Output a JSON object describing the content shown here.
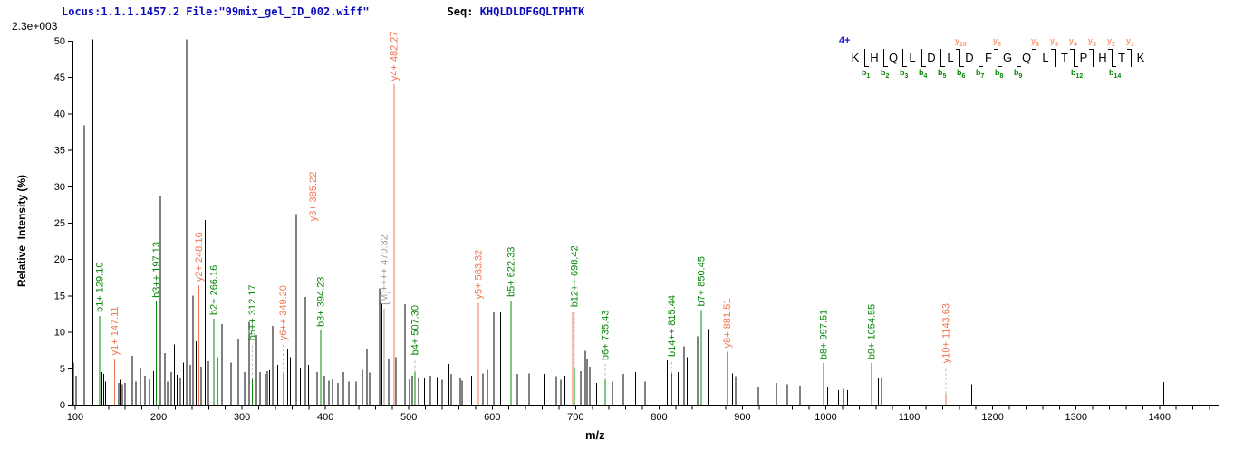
{
  "header": {
    "locus_file": "Locus:1.1.1.1457.2 File:\"99mix_gel_ID_002.wiff\"",
    "seq_label": "Seq:",
    "sequence": "KHQLDLDFGQLTPHTK",
    "max_intensity": "2.3e+003",
    "charge": "4+"
  },
  "colors": {
    "b_ion": "#068806",
    "y_ion": "#ef7450",
    "y_ion_map_label": "#f59a72",
    "precursor": "#9b9b9b",
    "leader_dash": "#bbbbbb",
    "header_blue": "#0b0bbe",
    "charge_blue": "#1616e0",
    "peak_black": "#000000"
  },
  "fragment_map": {
    "residues": [
      "K",
      "H",
      "Q",
      "L",
      "D",
      "L",
      "D",
      "F",
      "G",
      "Q",
      "L",
      "T",
      "P",
      "H",
      "T",
      "K"
    ],
    "y_ions": [
      {
        "after": 6,
        "ion": "y10"
      },
      {
        "after": 8,
        "ion": "y8"
      },
      {
        "after": 10,
        "ion": "y6"
      },
      {
        "after": 11,
        "ion": "y5"
      },
      {
        "after": 12,
        "ion": "y4"
      },
      {
        "after": 13,
        "ion": "y3"
      },
      {
        "after": 14,
        "ion": "y2"
      },
      {
        "after": 15,
        "ion": "y1"
      }
    ],
    "b_ions": [
      {
        "after": 1,
        "ion": "b1"
      },
      {
        "after": 2,
        "ion": "b2"
      },
      {
        "after": 3,
        "ion": "b3"
      },
      {
        "after": 4,
        "ion": "b4"
      },
      {
        "after": 5,
        "ion": "b5"
      },
      {
        "after": 6,
        "ion": "b6"
      },
      {
        "after": 7,
        "ion": "b7"
      },
      {
        "after": 8,
        "ion": "b8"
      },
      {
        "after": 9,
        "ion": "b9"
      },
      {
        "after": 12,
        "ion": "b12"
      },
      {
        "after": 14,
        "ion": "b14"
      }
    ]
  },
  "chart_data": {
    "type": "bar",
    "subtype": "ms2-peak-spectrum",
    "xlabel": "m/z",
    "ylabel": "Relative  Intensity (%)",
    "xlim": [
      96,
      1471
    ],
    "ylim": [
      0,
      50
    ],
    "x_tick_label_step": 100,
    "x_minor_tick_step": 20,
    "x_tick_labels": [
      100,
      200,
      300,
      400,
      500,
      600,
      700,
      800,
      900,
      1000,
      1100,
      1200,
      1300,
      1400
    ],
    "y_tick_step": 5,
    "y_tick_labels": [
      0,
      5,
      10,
      15,
      20,
      25,
      30,
      35,
      40,
      45,
      50
    ],
    "max_intensity_absolute": "2.3e+003",
    "annotated_peaks": [
      {
        "label": "b1+ 129.10",
        "mz": 129.1,
        "intensity": 12.2,
        "type": "b"
      },
      {
        "label": "y1+ 147.11",
        "mz": 147.11,
        "intensity": 6.3,
        "type": "y"
      },
      {
        "label": "b3++ 197.13",
        "mz": 197.13,
        "intensity": 14.2,
        "type": "b"
      },
      {
        "label": "y2+ 248.16",
        "mz": 248.16,
        "intensity": 16.4,
        "type": "y"
      },
      {
        "label": "b2+ 266.16",
        "mz": 266.16,
        "intensity": 11.8,
        "type": "b"
      },
      {
        "label": "b5++ 312.17",
        "mz": 312.17,
        "intensity": 3.5,
        "label_intensity": 8.3,
        "type": "b"
      },
      {
        "label": "y6++ 349.20",
        "mz": 349.2,
        "intensity": 4.2,
        "label_intensity": 8.3,
        "type": "y"
      },
      {
        "label": "y3+ 385.22",
        "mz": 385.22,
        "intensity": 24.7,
        "type": "y"
      },
      {
        "label": "b3+ 394.23",
        "mz": 394.23,
        "intensity": 10.2,
        "type": "b"
      },
      {
        "label": "[M]++++ 470.32",
        "mz": 470.32,
        "intensity": 13.2,
        "type": "M"
      },
      {
        "label": "y4+ 482.27",
        "mz": 482.27,
        "intensity": 44.0,
        "type": "y"
      },
      {
        "label": "b4+ 507.30",
        "mz": 507.3,
        "intensity": 4.5,
        "label_intensity": 6.3,
        "type": "b"
      },
      {
        "label": "y5+ 583.32",
        "mz": 583.32,
        "intensity": 14.0,
        "type": "y"
      },
      {
        "label": "b5+ 622.33",
        "mz": 622.33,
        "intensity": 14.3,
        "type": "b"
      },
      {
        "label": "",
        "mz": 696.4,
        "intensity": 12.7,
        "type": "y"
      },
      {
        "label": "b12++ 698.42",
        "mz": 698.42,
        "intensity": 4.9,
        "label_intensity": 12.9,
        "type": "b"
      },
      {
        "label": "b6+ 735.43",
        "mz": 735.43,
        "intensity": 3.4,
        "label_intensity": 5.6,
        "type": "b"
      },
      {
        "label": "b14++ 815.44",
        "mz": 815.44,
        "intensity": 4.3,
        "label_intensity": 6.1,
        "type": "b"
      },
      {
        "label": "b7+ 850.45",
        "mz": 850.45,
        "intensity": 13.0,
        "type": "b"
      },
      {
        "label": "y8+ 881.51",
        "mz": 881.51,
        "intensity": 7.3,
        "type": "y"
      },
      {
        "label": "b8+ 997.51",
        "mz": 997.51,
        "intensity": 5.7,
        "type": "b"
      },
      {
        "label": "b9+ 1054.55",
        "mz": 1054.55,
        "intensity": 5.7,
        "type": "b"
      },
      {
        "label": "y10+ 1143.63",
        "mz": 1143.63,
        "intensity": 1.5,
        "label_intensity": 5.2,
        "type": "y"
      }
    ],
    "peaks": [
      [
        98,
        5.8
      ],
      [
        101,
        4.0
      ],
      [
        110.9,
        38.4
      ],
      [
        121,
        50.2
      ],
      [
        132,
        4.5
      ],
      [
        134,
        4.2
      ],
      [
        136.5,
        3.2
      ],
      [
        152,
        3.0
      ],
      [
        154,
        3.4
      ],
      [
        156.5,
        2.8
      ],
      [
        160,
        3.0
      ],
      [
        168.4,
        6.7
      ],
      [
        173,
        3.2
      ],
      [
        178,
        5.0
      ],
      [
        183.6,
        4.0
      ],
      [
        189,
        3.5
      ],
      [
        194,
        4.6
      ],
      [
        202,
        28.7
      ],
      [
        207.5,
        7.1
      ],
      [
        211,
        3.2
      ],
      [
        215,
        4.5
      ],
      [
        218.7,
        8.3
      ],
      [
        222,
        4.1
      ],
      [
        226,
        3.6
      ],
      [
        230,
        5.8
      ],
      [
        233.8,
        50.2
      ],
      [
        238,
        5.5
      ],
      [
        241,
        15.0
      ],
      [
        245,
        8.7
      ],
      [
        251,
        5.2
      ],
      [
        256,
        25.4
      ],
      [
        259.5,
        6.0
      ],
      [
        270.5,
        6.5
      ],
      [
        276,
        11.1
      ],
      [
        286.8,
        5.8
      ],
      [
        295.5,
        9.0
      ],
      [
        303,
        4.5
      ],
      [
        308.6,
        11.4
      ],
      [
        317.3,
        9.6
      ],
      [
        321.6,
        4.5
      ],
      [
        328.2,
        4.2
      ],
      [
        330.5,
        4.6
      ],
      [
        333,
        4.7
      ],
      [
        336.8,
        10.8
      ],
      [
        343,
        5.5
      ],
      [
        354.5,
        7.7
      ],
      [
        358,
        6.5
      ],
      [
        365,
        26.2
      ],
      [
        370,
        5.0
      ],
      [
        375.9,
        14.8
      ],
      [
        379.5,
        5.5
      ],
      [
        390,
        4.5
      ],
      [
        398.7,
        4.0
      ],
      [
        404,
        3.3
      ],
      [
        408.5,
        3.5
      ],
      [
        415,
        3.0
      ],
      [
        421.6,
        4.5
      ],
      [
        428,
        3.2
      ],
      [
        436.7,
        3.2
      ],
      [
        444.3,
        4.8
      ],
      [
        449.8,
        7.7
      ],
      [
        453,
        4.4
      ],
      [
        465,
        16.0
      ],
      [
        467.9,
        13.9
      ],
      [
        475.9,
        6.2
      ],
      [
        484.6,
        6.5
      ],
      [
        495.4,
        13.8
      ],
      [
        500.9,
        3.5
      ],
      [
        504,
        4.0
      ],
      [
        511.7,
        3.7
      ],
      [
        519,
        3.6
      ],
      [
        526,
        4.0
      ],
      [
        534,
        3.8
      ],
      [
        540,
        3.4
      ],
      [
        548,
        5.6
      ],
      [
        551,
        4.2
      ],
      [
        561.5,
        3.7
      ],
      [
        564,
        3.3
      ],
      [
        575,
        4.0
      ],
      [
        589,
        4.3
      ],
      [
        594,
        4.8
      ],
      [
        602,
        12.7
      ],
      [
        610,
        12.7
      ],
      [
        630,
        4.2
      ],
      [
        644,
        4.3
      ],
      [
        662,
        4.2
      ],
      [
        677,
        3.9
      ],
      [
        682,
        3.4
      ],
      [
        687,
        4.0
      ],
      [
        706,
        4.6
      ],
      [
        709,
        8.6
      ],
      [
        711.5,
        7.4
      ],
      [
        714,
        6.3
      ],
      [
        717,
        5.2
      ],
      [
        721,
        3.8
      ],
      [
        725,
        3.0
      ],
      [
        744,
        3.2
      ],
      [
        757,
        4.2
      ],
      [
        772,
        4.5
      ],
      [
        783,
        3.2
      ],
      [
        810,
        6.1
      ],
      [
        813,
        4.4
      ],
      [
        823,
        4.5
      ],
      [
        830,
        8.0
      ],
      [
        834,
        6.5
      ],
      [
        846,
        9.4
      ],
      [
        859,
        10.4
      ],
      [
        888,
        4.3
      ],
      [
        892,
        3.9
      ],
      [
        919,
        2.5
      ],
      [
        941,
        3.0
      ],
      [
        954,
        2.8
      ],
      [
        969,
        2.6
      ],
      [
        1002,
        2.4
      ],
      [
        1015,
        2.0
      ],
      [
        1021,
        2.2
      ],
      [
        1026,
        2.0
      ],
      [
        1063,
        3.6
      ],
      [
        1067,
        3.8
      ],
      [
        1175,
        2.8
      ],
      [
        1405,
        3.1
      ]
    ]
  }
}
